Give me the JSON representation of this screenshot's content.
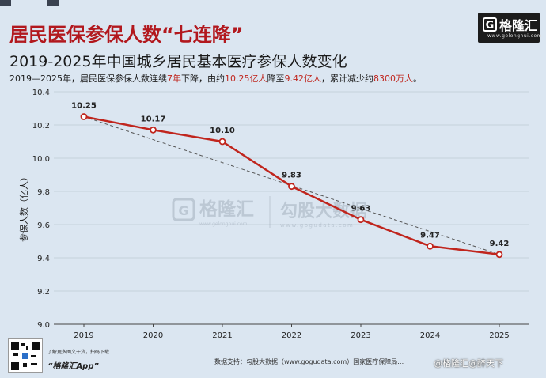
{
  "header": {
    "title": "居民医保参保人数“七连降”",
    "subtitle": "2019-2025年中国城乡居民基本医疗参保人数变化",
    "description": {
      "part1": "2019—2025年，居民医保参保人数连续",
      "hl1": "7年",
      "part2": "下降，由约",
      "hl2": "10.25亿人",
      "part3": "降至",
      "hl3": "9.42亿人",
      "part4": "，累计减少约",
      "hl4": "8300万人",
      "part5": "。"
    }
  },
  "logo": {
    "name": "格隆汇",
    "url": "www.gelonghui.com"
  },
  "watermark": {
    "brand": "格隆汇",
    "brand_sub": "www.gelonghui.com",
    "data_brand": "勾股大数据",
    "data_url": "www.gogudata.com"
  },
  "footer": {
    "qr_note": "了解更多图文干货，扫码下载",
    "app_name": "“格隆汇App”",
    "source": "数据支持：勾股大数据（www.gogudata.com）国家医疗保障局…",
    "weibo": "@格隆汇@醉天下"
  },
  "colors": {
    "line": "#c0251d",
    "trend": "#555555",
    "title": "#b2181e",
    "background": "#dbe6f1"
  },
  "chart_data": {
    "type": "line",
    "x": [
      "2019",
      "2020",
      "2021",
      "2022",
      "2023",
      "2024",
      "2025"
    ],
    "values": [
      10.25,
      10.17,
      10.1,
      9.83,
      9.63,
      9.47,
      9.42
    ],
    "data_labels": [
      "10.25",
      "10.17",
      "10.10",
      "9.83",
      "9.63",
      "9.47",
      "9.42"
    ],
    "ylabel": "参保人数（亿人）",
    "ylim": [
      9.0,
      10.4
    ],
    "yticks": [
      "9.0",
      "9.2",
      "9.4",
      "9.6",
      "9.8",
      "10.0",
      "10.2",
      "10.4"
    ],
    "trendline": {
      "from": 10.25,
      "to": 9.42,
      "style": "dashed"
    },
    "grid": true
  }
}
